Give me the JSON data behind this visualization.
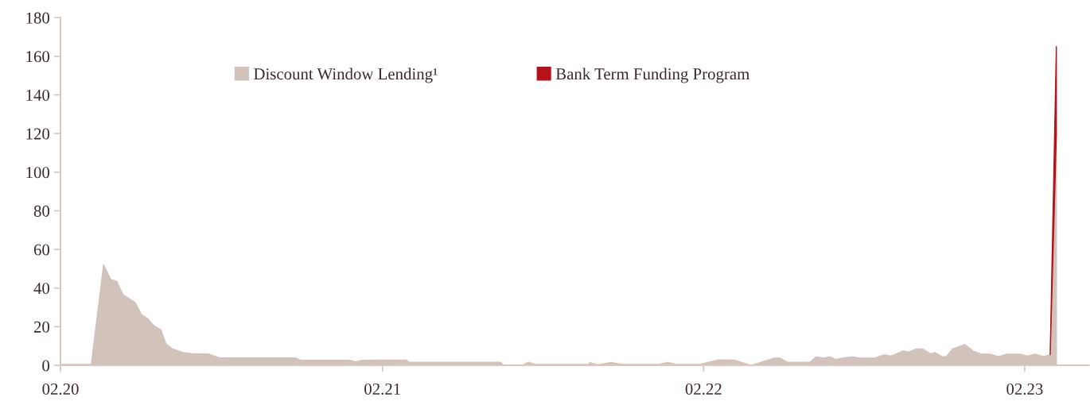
{
  "chart_data": {
    "type": "area",
    "stacked": true,
    "x": [
      "2020-02-01",
      "2020-03-07",
      "2020-03-21",
      "2020-03-29",
      "2020-04-05",
      "2020-04-12",
      "2020-04-26",
      "2020-05-03",
      "2020-05-10",
      "2020-05-17",
      "2020-05-25",
      "2020-05-31",
      "2020-06-07",
      "2020-06-19",
      "2020-07-01",
      "2020-07-18",
      "2020-07-31",
      "2020-10-25",
      "2020-10-31",
      "2020-12-26",
      "2021-01-01",
      "2021-01-09",
      "2021-02-28",
      "2021-03-03",
      "2021-06-15",
      "2021-06-19",
      "2021-07-10",
      "2021-07-17",
      "2021-07-24",
      "2021-09-23",
      "2021-09-25",
      "2021-10-04",
      "2021-10-19",
      "2021-10-31",
      "2021-12-12",
      "2021-12-22",
      "2022-01-01",
      "2022-01-28",
      "2022-02-18",
      "2022-03-08",
      "2022-03-27",
      "2022-04-22",
      "2022-04-29",
      "2022-05-07",
      "2022-06-02",
      "2022-06-09",
      "2022-06-17",
      "2022-06-25",
      "2022-07-01",
      "2022-07-08",
      "2022-07-20",
      "2022-07-29",
      "2022-08-14",
      "2022-08-26",
      "2022-09-02",
      "2022-09-16",
      "2022-09-22",
      "2022-10-01",
      "2022-10-08",
      "2022-10-17",
      "2022-10-22",
      "2022-10-30",
      "2022-11-04",
      "2022-11-11",
      "2022-11-25",
      "2022-12-04",
      "2022-12-13",
      "2022-12-24",
      "2023-01-02",
      "2023-01-12",
      "2023-01-27",
      "2023-02-04",
      "2023-02-13",
      "2023-02-22",
      "2023-03-02",
      "2023-03-09"
    ],
    "series": [
      {
        "name": "Discount Window Lending¹",
        "color": "#d1c3bb",
        "values": [
          0.5,
          0.5,
          52,
          44.5,
          43.4,
          36.6,
          32.5,
          26.3,
          24.2,
          20.5,
          18.5,
          11,
          8.6,
          6.6,
          5.9,
          5.9,
          3.8,
          3.8,
          2.6,
          2.6,
          1.8,
          2.6,
          2.7,
          1.6,
          1.6,
          0,
          0,
          1.6,
          0.5,
          0.5,
          1.4,
          0.3,
          1.5,
          0.5,
          0.5,
          1.5,
          0.5,
          0.5,
          2.8,
          2.7,
          0,
          3.7,
          3.7,
          1.6,
          1.6,
          4.4,
          3.7,
          4.4,
          3,
          3.7,
          4.4,
          3.7,
          3.7,
          5.5,
          4.8,
          7.5,
          6.8,
          8.5,
          8.5,
          5.9,
          6.6,
          4.5,
          4.5,
          8.5,
          10.7,
          7.5,
          5.9,
          5.8,
          4.5,
          5.8,
          5.8,
          4.8,
          5.8,
          4.5,
          5.5,
          120
        ]
      },
      {
        "name": "Bank Term Funding Program",
        "color": "#b5121b",
        "values": [
          null,
          null,
          null,
          null,
          null,
          null,
          null,
          null,
          null,
          null,
          null,
          null,
          null,
          null,
          null,
          null,
          null,
          null,
          null,
          null,
          null,
          null,
          null,
          null,
          null,
          null,
          null,
          null,
          null,
          null,
          null,
          null,
          null,
          null,
          null,
          null,
          null,
          null,
          null,
          null,
          null,
          null,
          null,
          null,
          null,
          null,
          null,
          null,
          null,
          null,
          null,
          null,
          null,
          null,
          null,
          null,
          null,
          null,
          null,
          null,
          null,
          null,
          null,
          null,
          null,
          null,
          null,
          null,
          null,
          null,
          null,
          null,
          null,
          null,
          0,
          45
        ]
      }
    ],
    "xlim": [
      "2020-02-01",
      "2023-04-15"
    ],
    "xticks": [
      {
        "value": "2020-02-01",
        "label": "02.20"
      },
      {
        "value": "2021-02-01",
        "label": "02.21"
      },
      {
        "value": "2022-02-01",
        "label": "02.22"
      },
      {
        "value": "2023-02-01",
        "label": "02.23"
      }
    ],
    "ylim": [
      0,
      180
    ],
    "yticks": [
      0,
      20,
      40,
      60,
      80,
      100,
      120,
      140,
      160,
      180
    ],
    "grid": false,
    "legend": "top"
  }
}
